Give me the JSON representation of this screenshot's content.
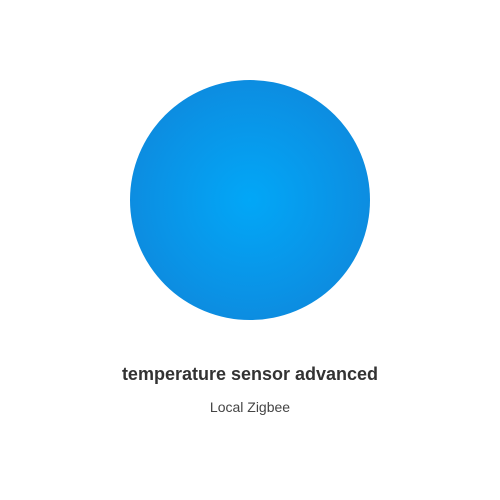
{
  "device": {
    "icon": "device-circle-icon",
    "color": "#0a93e6",
    "name": "temperature sensor advanced",
    "protocol": "Local Zigbee"
  }
}
